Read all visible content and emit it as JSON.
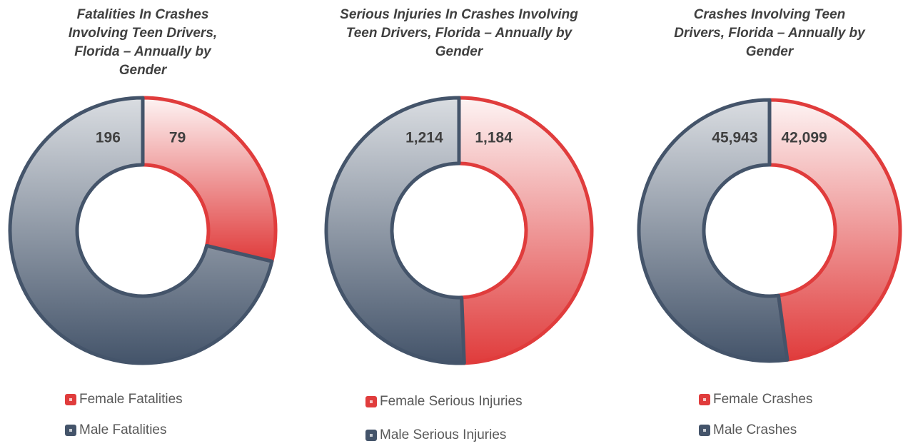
{
  "chart_data": [
    {
      "type": "donut",
      "title": "Fatalities In Crashes Involving Teen Drivers, Florida – Annually by Gender",
      "labels": [
        "Female Fatalities",
        "Male Fatalities"
      ],
      "values": [
        79,
        196
      ],
      "colors": [
        "#e03c3c",
        "#44546a"
      ]
    },
    {
      "type": "donut",
      "title": "Serious Injuries In Crashes Involving Teen Drivers, Florida – Annually by Gender",
      "labels": [
        "Female Serious Injuries",
        "Male Serious Injuries"
      ],
      "values": [
        1184,
        1214
      ],
      "value_labels": [
        "1,184",
        "1,214"
      ],
      "colors": [
        "#e03c3c",
        "#44546a"
      ]
    },
    {
      "type": "donut",
      "title": "Crashes Involving Teen Drivers, Florida – Annually by Gender",
      "labels": [
        "Female Crashes",
        "Male Crashes"
      ],
      "values": [
        42099,
        45943
      ],
      "value_labels": [
        "42,099",
        "45,943"
      ],
      "colors": [
        "#e03c3c",
        "#44546a"
      ]
    }
  ]
}
